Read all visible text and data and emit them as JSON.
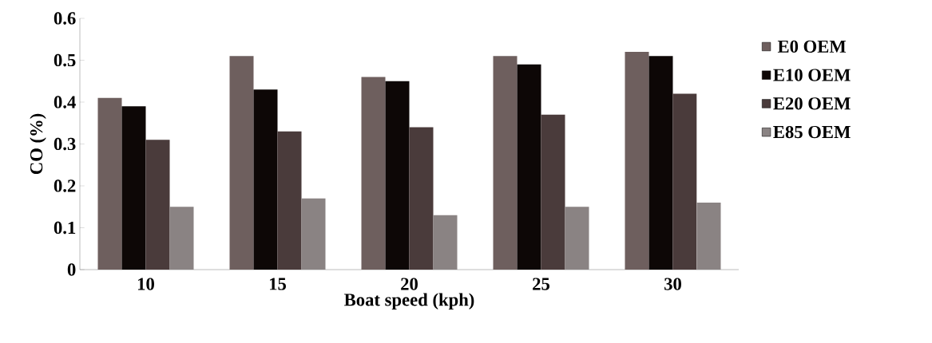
{
  "chart_data": {
    "type": "bar",
    "xlabel": "Boat speed (kph)",
    "ylabel": "CO (%)",
    "categories": [
      "10",
      "15",
      "20",
      "25",
      "30"
    ],
    "series": [
      {
        "name": "E0 OEM",
        "color": "#6e5f5e",
        "values": [
          0.41,
          0.51,
          0.46,
          0.51,
          0.52
        ]
      },
      {
        "name": "E10 OEM",
        "color": "#0d0706",
        "values": [
          0.39,
          0.43,
          0.45,
          0.49,
          0.51
        ]
      },
      {
        "name": "E20 OEM",
        "color": "#4a3b3b",
        "values": [
          0.31,
          0.33,
          0.34,
          0.37,
          0.42
        ]
      },
      {
        "name": "E85 OEM",
        "color": "#8a8383",
        "values": [
          0.15,
          0.17,
          0.13,
          0.15,
          0.16
        ]
      }
    ],
    "ylim": [
      0,
      0.6
    ],
    "yticks": [
      0,
      0.1,
      0.2,
      0.3,
      0.4,
      0.5,
      0.6
    ],
    "legend": "right"
  }
}
